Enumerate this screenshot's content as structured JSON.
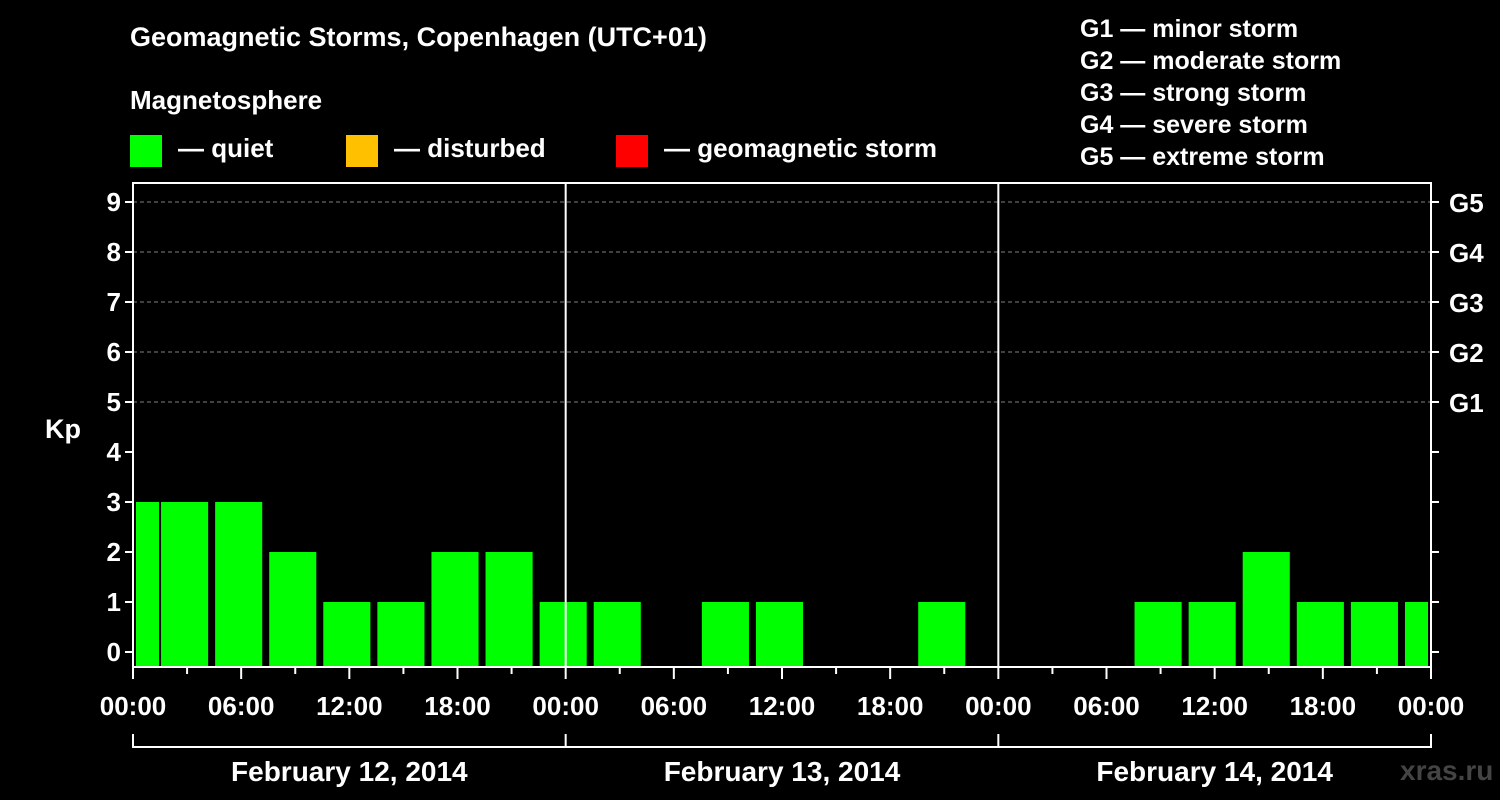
{
  "chart_data": {
    "type": "bar",
    "title": "Geomagnetic Storms, Copenhagen (UTC+01)",
    "ylabel": "Kp",
    "ylim": [
      0,
      9
    ],
    "yticks": [
      "0",
      "1",
      "2",
      "3",
      "4",
      "5",
      "6",
      "7",
      "8",
      "9"
    ],
    "right_ticks": [
      {
        "kp": 5,
        "label": "G1"
      },
      {
        "kp": 6,
        "label": "G2"
      },
      {
        "kp": 7,
        "label": "G3"
      },
      {
        "kp": 8,
        "label": "G4"
      },
      {
        "kp": 9,
        "label": "G5"
      }
    ],
    "xtick_labels": [
      "00:00",
      "06:00",
      "12:00",
      "18:00",
      "00:00",
      "06:00",
      "12:00",
      "18:00",
      "00:00",
      "06:00",
      "12:00",
      "18:00",
      "00:00"
    ],
    "days": [
      "February 12, 2014",
      "February 13, 2014",
      "February 14, 2014"
    ],
    "interval_hours": 3,
    "bars": [
      {
        "start_hour": 0,
        "end_hour": 1.5,
        "kp": 3
      },
      {
        "start_hour": 1.5,
        "kp": 3
      },
      {
        "start_hour": 4.5,
        "kp": 3
      },
      {
        "start_hour": 7.5,
        "kp": 2
      },
      {
        "start_hour": 10.5,
        "kp": 1
      },
      {
        "start_hour": 13.5,
        "kp": 1
      },
      {
        "start_hour": 16.5,
        "kp": 2
      },
      {
        "start_hour": 19.5,
        "kp": 2
      },
      {
        "start_hour": 22.5,
        "kp": 1
      },
      {
        "start_hour": 25.5,
        "kp": 1
      },
      {
        "start_hour": 28.5,
        "kp": 0
      },
      {
        "start_hour": 31.5,
        "kp": 1
      },
      {
        "start_hour": 34.5,
        "kp": 1
      },
      {
        "start_hour": 37.5,
        "kp": 0
      },
      {
        "start_hour": 40.5,
        "kp": 0
      },
      {
        "start_hour": 43.5,
        "kp": 1
      },
      {
        "start_hour": 46.5,
        "kp": 0
      },
      {
        "start_hour": 49.5,
        "kp": 0
      },
      {
        "start_hour": 52.5,
        "kp": 0
      },
      {
        "start_hour": 55.5,
        "kp": 1
      },
      {
        "start_hour": 58.5,
        "kp": 1
      },
      {
        "start_hour": 61.5,
        "kp": 2
      },
      {
        "start_hour": 64.5,
        "kp": 1
      },
      {
        "start_hour": 67.5,
        "kp": 1
      },
      {
        "start_hour": 70.5,
        "end_hour": 72,
        "kp": 1
      }
    ],
    "colors": {
      "quiet": "#00ff00",
      "disturbed": "#ffc000",
      "storm": "#ff0000",
      "axis": "#ffffff",
      "grid": "#808080"
    }
  },
  "legend": {
    "section_title": "Magnetosphere",
    "items": [
      {
        "label": "— quiet",
        "color": "#00ff00"
      },
      {
        "label": "— disturbed",
        "color": "#ffc000"
      },
      {
        "label": "— geomagnetic storm",
        "color": "#ff0000"
      }
    ]
  },
  "storm_scale": [
    "G1 — minor storm",
    "G2 — moderate storm",
    "G3 — strong storm",
    "G4 — severe storm",
    "G5 — extreme storm"
  ],
  "watermark": "xras.ru"
}
